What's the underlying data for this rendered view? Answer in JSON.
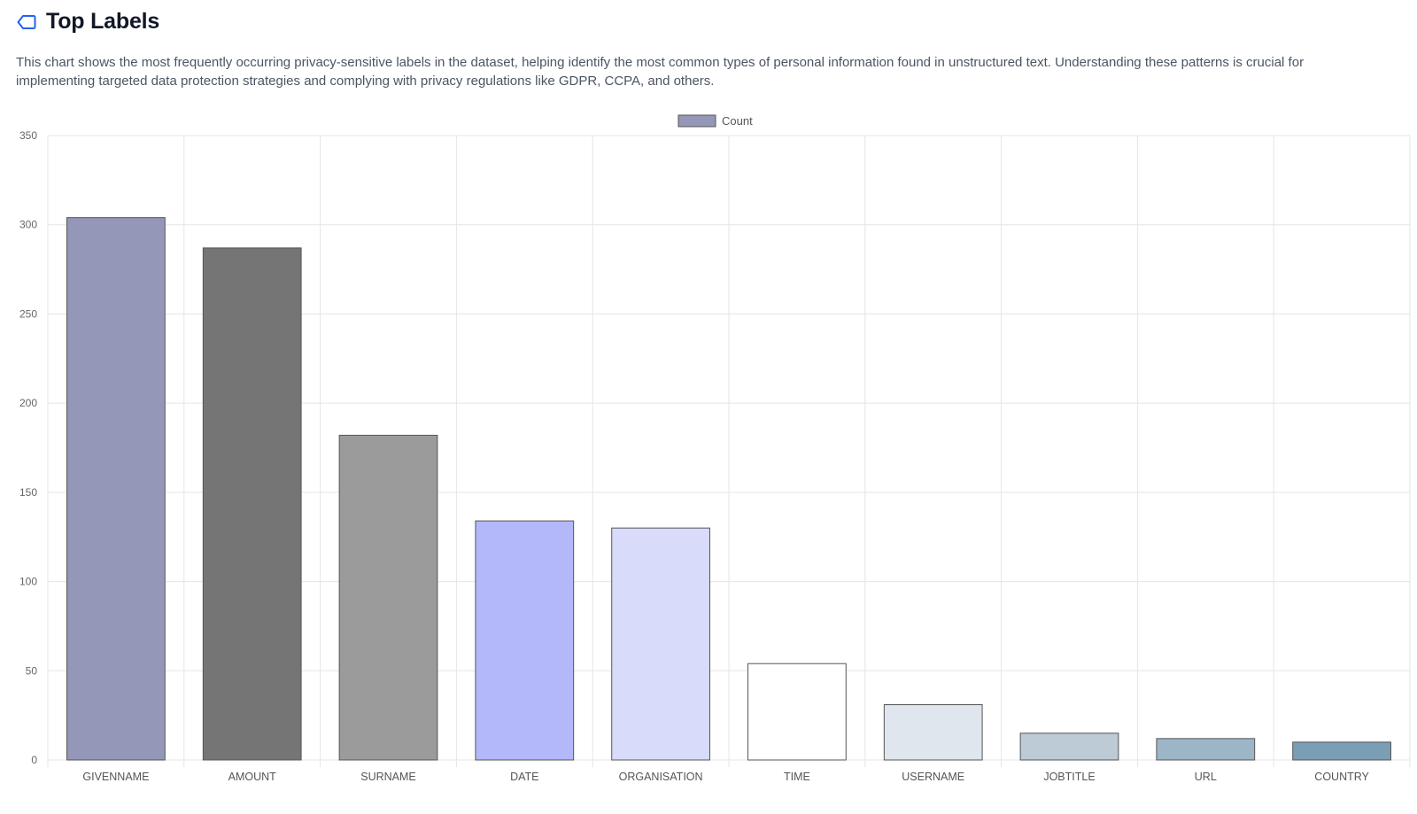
{
  "header": {
    "title": "Top Labels",
    "icon": "label-tag-icon",
    "icon_color": "#2563eb"
  },
  "description": "This chart shows the most frequently occurring privacy-sensitive labels in the dataset, helping identify the most common types of personal information found in unstructured text. Understanding these patterns is crucial for implementing targeted data protection strategies and complying with privacy regulations like GDPR, CCPA, and others.",
  "chart_data": {
    "type": "bar",
    "categories": [
      "GIVENNAME",
      "AMOUNT",
      "SURNAME",
      "DATE",
      "ORGANISATION",
      "TIME",
      "USERNAME",
      "JOBTITLE",
      "URL",
      "COUNTRY"
    ],
    "series": [
      {
        "name": "Count",
        "values": [
          304,
          287,
          182,
          134,
          130,
          54,
          31,
          15,
          12,
          10
        ]
      }
    ],
    "bar_colors": [
      "#9497b8",
      "#757575",
      "#9b9b9b",
      "#b2b8fa",
      "#d9dbfb",
      "#ffffff",
      "#e0e6ee",
      "#bccbd6",
      "#9cb6c8",
      "#7a9eb4"
    ],
    "legend": {
      "label": "Count",
      "color": "#9497b8",
      "placement": "top-center"
    },
    "ylim": [
      0,
      350
    ],
    "yticks": [
      0,
      50,
      100,
      150,
      200,
      250,
      300,
      350
    ],
    "grid": true,
    "title": "",
    "xlabel": "",
    "ylabel": ""
  }
}
